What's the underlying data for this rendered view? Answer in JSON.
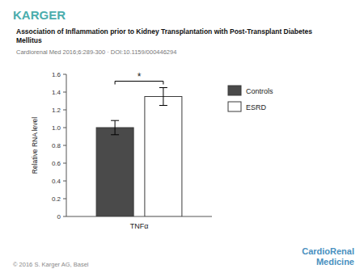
{
  "chart_data": {
    "type": "bar",
    "title": "Association of Inflammation prior to Kidney Transplantation with Post-Transplant Diabetes\nMellitus",
    "subtitle": "Cardiorenal Med 2016;6:289-300 · DOI:10.1159/000446294",
    "annotations": [
      {
        "text": "KARGER",
        "color": "#4aadad"
      },
      {
        "text": "© 2016 S. Karger AG, Basel",
        "color": "#888888"
      },
      {
        "text": "CardioRenal\nMedicine",
        "color": "#4a90c0"
      },
      {
        "text": "*"
      }
    ],
    "categories": [
      "TNFα"
    ],
    "ylabel": "Relative RNA level",
    "series": [
      {
        "name": "Controls",
        "color": "#4a4a4a",
        "values": [
          1.0
        ],
        "errors": [
          0.08
        ]
      },
      {
        "name": "ESRD",
        "color": "#ffffff",
        "values": [
          1.35
        ],
        "errors": [
          0.1
        ]
      }
    ],
    "ylim": [
      0,
      1.6
    ],
    "yticks": [
      0,
      0.2,
      0.4,
      0.6,
      0.8,
      {
        "value": 1.0,
        "label": "1.0"
      },
      1.2,
      1.4,
      1.6
    ],
    "grid": false,
    "legend": "right"
  }
}
